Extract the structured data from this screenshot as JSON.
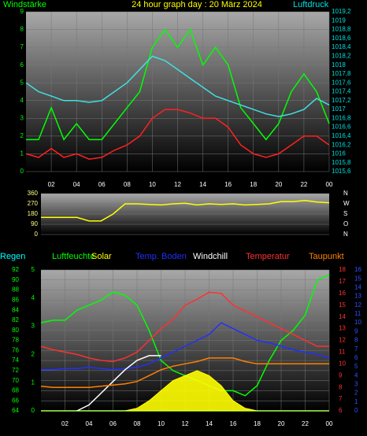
{
  "chart_data": [
    {
      "type": "line",
      "title": "24 hour graph day : 20 März 2024",
      "ylabel": "Windstärke",
      "y2label": "Luftdruck",
      "x": [
        0,
        1,
        2,
        3,
        4,
        5,
        6,
        7,
        8,
        9,
        10,
        11,
        12,
        13,
        14,
        15,
        16,
        17,
        18,
        19,
        20,
        21,
        22,
        23,
        24
      ],
      "xlim": [
        0,
        24
      ],
      "xticks": [
        {
          "value": 2,
          "label": "02"
        },
        {
          "value": 4,
          "label": "04"
        },
        {
          "value": 6,
          "label": "06"
        },
        {
          "value": 8,
          "label": "08"
        },
        10,
        12,
        14,
        16,
        18,
        20,
        22,
        {
          "value": 24,
          "label": "00"
        }
      ],
      "ylim": [
        0,
        9
      ],
      "yticks": [
        0,
        1,
        2,
        3,
        4,
        5,
        6,
        7,
        8,
        9
      ],
      "ycolor": "#00ff00",
      "y2lim": [
        1015.6,
        1019.2
      ],
      "y2ticks": [
        {
          "value": 1015.6,
          "label": "1015,6"
        },
        {
          "value": 1015.8,
          "label": "1015,8"
        },
        1016,
        {
          "value": 1016.2,
          "label": "1016,2"
        },
        {
          "value": 1016.4,
          "label": "1016,4"
        },
        {
          "value": 1016.6,
          "label": "1016,6"
        },
        {
          "value": 1016.8,
          "label": "1016,8"
        },
        1017,
        {
          "value": 1017.2,
          "label": "1017,2"
        },
        {
          "value": 1017.4,
          "label": "1017,4"
        },
        {
          "value": 1017.6,
          "label": "1017,6"
        },
        {
          "value": 1017.8,
          "label": "1017,8"
        },
        1018,
        {
          "value": 1018.2,
          "label": "1018,2"
        },
        {
          "value": 1018.4,
          "label": "1018,4"
        },
        {
          "value": 1018.6,
          "label": "1018,6"
        },
        {
          "value": 1018.8,
          "label": "1018,8"
        },
        1019,
        {
          "value": 1019.2,
          "label": "1019,2"
        }
      ],
      "y2color": "#00e0e0",
      "grid": true,
      "series": [
        {
          "color": "#00ff00",
          "axis": "y",
          "values": [
            1.8,
            1.8,
            3.6,
            1.8,
            2.7,
            1.8,
            1.8,
            2.7,
            3.6,
            4.5,
            7,
            8,
            7,
            8,
            6,
            7,
            6,
            3.6,
            2.7,
            1.8,
            2.7,
            4.5,
            5.5,
            4.5,
            2.7
          ]
        },
        {
          "color": "#ff2020",
          "axis": "y",
          "values": [
            1,
            0.8,
            1.3,
            0.8,
            1,
            0.7,
            0.8,
            1.2,
            1.5,
            2,
            3,
            3.5,
            3.5,
            3.3,
            3,
            3,
            2.5,
            1.5,
            1,
            0.8,
            1,
            1.5,
            2,
            2,
            1.5
          ]
        },
        {
          "color": "#40e0e0",
          "axis": "y2",
          "values": [
            1017.6,
            1017.4,
            1017.3,
            1017.2,
            1017.2,
            1017.16,
            1017.2,
            1017.4,
            1017.6,
            1017.9,
            1018.2,
            1018.1,
            1017.9,
            1017.7,
            1017.5,
            1017.3,
            1017.2,
            1017.1,
            1017,
            1016.9,
            1016.84,
            1016.9,
            1017,
            1017.25,
            1017.1
          ]
        }
      ]
    },
    {
      "type": "line",
      "x": [
        0,
        1,
        2,
        3,
        4,
        5,
        6,
        7,
        8,
        9,
        10,
        11,
        12,
        13,
        14,
        15,
        16,
        17,
        18,
        19,
        20,
        21,
        22,
        23,
        24
      ],
      "xlim": [
        0,
        24
      ],
      "ylim": [
        0,
        360
      ],
      "yticks": [
        0,
        90,
        180,
        270,
        360
      ],
      "ycolor": "#ffff80",
      "y2lim": [
        0,
        360
      ],
      "y2ticks": [
        {
          "value": 360,
          "label": "N"
        },
        {
          "value": 270,
          "label": "W"
        },
        {
          "value": 180,
          "label": "S"
        },
        {
          "value": 90,
          "label": "O"
        },
        {
          "value": 0,
          "label": "N"
        }
      ],
      "y2color": "#ffffff",
      "grid": true,
      "series": [
        {
          "color": "#ffff00",
          "axis": "y",
          "values": [
            150,
            150,
            150,
            150,
            120,
            120,
            180,
            270,
            270,
            265,
            260,
            270,
            275,
            260,
            270,
            265,
            270,
            260,
            265,
            270,
            290,
            290,
            300,
            285,
            280
          ]
        }
      ]
    },
    {
      "type": "line",
      "x": [
        0,
        1,
        2,
        3,
        4,
        5,
        6,
        7,
        8,
        9,
        10,
        11,
        12,
        13,
        14,
        15,
        16,
        17,
        18,
        19,
        20,
        21,
        22,
        23,
        24
      ],
      "xlim": [
        0,
        24
      ],
      "xticks": [
        {
          "value": 2,
          "label": "02"
        },
        {
          "value": 4,
          "label": "04"
        },
        {
          "value": 6,
          "label": "06"
        },
        {
          "value": 8,
          "label": "08"
        },
        10,
        12,
        14,
        16,
        18,
        20,
        22,
        {
          "value": 24,
          "label": "00"
        }
      ],
      "ylim": [
        64,
        92
      ],
      "yticks": [
        64,
        66,
        68,
        70,
        72,
        74,
        76,
        78,
        80,
        82,
        84,
        86,
        88,
        90,
        92
      ],
      "ycolor": "#00ff00",
      "y4lim": [
        0,
        5
      ],
      "y4ticks": [
        0,
        1,
        2,
        3,
        4,
        5
      ],
      "y4color": "#00ff00",
      "y2lim": [
        6,
        18
      ],
      "y2ticks": [
        6,
        7,
        8,
        9,
        10,
        11,
        12,
        13,
        14,
        15,
        16,
        17,
        18
      ],
      "y2color": "#ff3030",
      "y3lim": [
        0,
        16
      ],
      "y3ticks": [
        0,
        1,
        2,
        3,
        4,
        5,
        6,
        7,
        8,
        9,
        10,
        11,
        12,
        13,
        14,
        15,
        16
      ],
      "y3color": "#3050ff",
      "grid": true,
      "series": [
        {
          "name": "Regen",
          "color": "#00ffff",
          "axis": "y4",
          "values": [
            0,
            0,
            0,
            0,
            0,
            0,
            0,
            0,
            0,
            0,
            0,
            0,
            0,
            0,
            0,
            0,
            0,
            0,
            0,
            0,
            0,
            0,
            0,
            0,
            0
          ]
        },
        {
          "name": "Luftfeuchte",
          "color": "#00ff00",
          "axis": "y",
          "values": [
            81.5,
            82,
            82,
            84,
            85,
            86,
            87.6,
            87,
            85,
            80,
            74,
            72,
            71,
            70,
            69,
            68,
            68,
            67,
            69,
            74,
            78,
            80,
            83,
            90,
            91
          ]
        },
        {
          "name": "Solar",
          "color": "#ffff00",
          "axis": "y",
          "style": "area",
          "values": [
            64,
            64,
            64,
            64,
            64,
            64,
            64,
            64,
            64.5,
            66,
            68,
            70,
            71,
            72,
            71,
            69,
            66,
            64.5,
            64,
            64,
            64,
            64,
            64,
            64,
            64
          ]
        },
        {
          "name": "Temp. Boden",
          "color": "#2030ff",
          "axis": "y2",
          "values": [
            9.5,
            9.5,
            9.6,
            9.6,
            9.7,
            9.6,
            9.5,
            9.6,
            9.7,
            10,
            10.5,
            11,
            11.5,
            12,
            12.5,
            13.5,
            13,
            12.5,
            12,
            11.8,
            11.5,
            11.2,
            11,
            10.8,
            10.5
          ]
        },
        {
          "name": "Windchill",
          "color": "#ffffff",
          "axis": "y2",
          "values": [
            null,
            null,
            null,
            6,
            6.5,
            7.5,
            8.5,
            9.5,
            10.3,
            10.7,
            10.7,
            null,
            null,
            null,
            null,
            null,
            null,
            null,
            null,
            null,
            null,
            null,
            null,
            null,
            null
          ]
        },
        {
          "name": "Temperatur",
          "color": "#ff3030",
          "axis": "y2",
          "values": [
            11.5,
            11.2,
            11,
            10.8,
            10.5,
            10.3,
            10.2,
            10.5,
            11,
            12,
            13,
            13.8,
            15,
            15.5,
            16.1,
            16,
            15,
            14.5,
            14,
            13.5,
            13,
            12.5,
            12,
            11.5,
            11.5
          ]
        },
        {
          "name": "Taupunkt",
          "color": "#ff8000",
          "axis": "y2",
          "values": [
            8.1,
            8,
            8,
            8,
            8,
            8.1,
            8.2,
            8.3,
            8.5,
            9,
            9.5,
            9.8,
            10,
            10.2,
            10.5,
            10.5,
            10.5,
            10.2,
            10,
            10,
            10,
            10,
            10,
            10,
            10
          ]
        }
      ]
    }
  ]
}
